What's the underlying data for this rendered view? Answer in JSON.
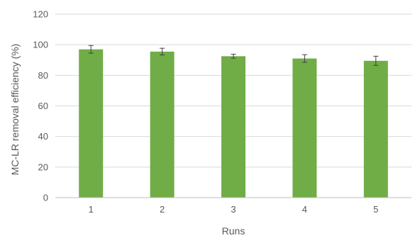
{
  "chart_data": {
    "type": "bar",
    "title": "",
    "xlabel": "Runs",
    "ylabel": "MC-LR removal efficiency (%)",
    "categories": [
      "1",
      "2",
      "3",
      "4",
      "5"
    ],
    "values": [
      97.0,
      95.5,
      92.5,
      91.0,
      89.5
    ],
    "error": [
      2.5,
      2.2,
      1.3,
      2.5,
      3.0
    ],
    "ylim": [
      0,
      120
    ],
    "yticks": [
      0,
      20,
      40,
      60,
      80,
      100,
      120
    ],
    "ytick_labels": [
      "0",
      "20",
      "40",
      "60",
      "80",
      "100",
      "120"
    ],
    "grid": true,
    "legend": "none",
    "colors": {
      "bar": "#70AD47",
      "grid": "#D9D9D9",
      "axis": "#BFBFBF",
      "error_bar": "#404040",
      "text": "#595959"
    }
  }
}
